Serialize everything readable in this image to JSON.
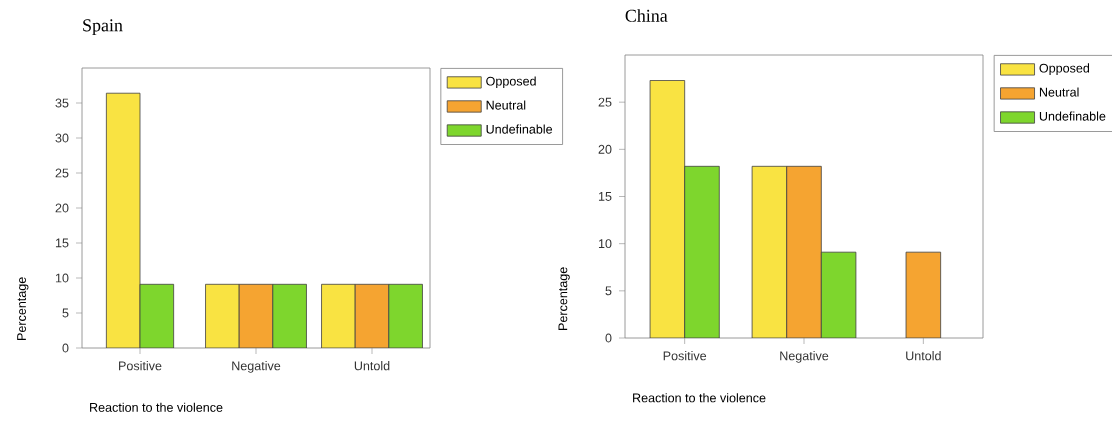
{
  "chart_data": [
    {
      "type": "bar",
      "title": "Spain",
      "xlabel": "Reaction to the violence",
      "ylabel": "Percentage",
      "categories": [
        "Positive",
        "Negative",
        "Untold"
      ],
      "series": [
        {
          "name": "Opposed",
          "color": "#f9e342",
          "values": [
            36.4,
            9.1,
            9.1
          ]
        },
        {
          "name": "Neutral",
          "color": "#f5a431",
          "values": [
            null,
            9.1,
            9.1
          ]
        },
        {
          "name": "Undefinable",
          "color": "#7ed62d",
          "values": [
            9.1,
            9.1,
            9.1
          ]
        }
      ],
      "ylim": [
        0,
        40
      ],
      "yticks": [
        0,
        5,
        10,
        15,
        20,
        25,
        30,
        35
      ],
      "grid": false,
      "legend": "top right"
    },
    {
      "type": "bar",
      "title": "China",
      "xlabel": "Reaction to the violence",
      "ylabel": "Percentage",
      "categories": [
        "Positive",
        "Negative",
        "Untold"
      ],
      "series": [
        {
          "name": "Opposed",
          "color": "#f9e342",
          "values": [
            27.3,
            18.2,
            null
          ]
        },
        {
          "name": "Neutral",
          "color": "#f5a431",
          "values": [
            null,
            18.2,
            9.1
          ]
        },
        {
          "name": "Undefinable",
          "color": "#7ed62d",
          "values": [
            18.2,
            9.1,
            null
          ]
        }
      ],
      "ylim": [
        0,
        30
      ],
      "yticks": [
        0,
        5,
        10,
        15,
        20,
        25
      ],
      "grid": false,
      "legend": "top right"
    }
  ]
}
